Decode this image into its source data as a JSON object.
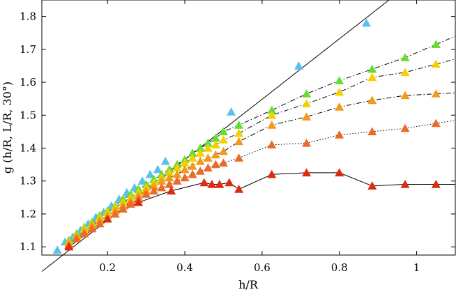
{
  "chart_data": {
    "type": "scatter",
    "title": "",
    "xlabel": "h/R",
    "ylabel": "g (h/R, L/R, 30°)",
    "xlim": [
      0.03,
      1.1
    ],
    "ylim": [
      1.075,
      1.85
    ],
    "xticks": [
      0.2,
      0.4,
      0.6,
      0.8,
      1.0
    ],
    "xtick_labels": [
      "0.2",
      "0.4",
      "0.6",
      "0.8",
      "1"
    ],
    "yticks": [
      1.1,
      1.2,
      1.3,
      1.4,
      1.5,
      1.6,
      1.7,
      1.8
    ],
    "ytick_labels": [
      "1.1",
      "1.2",
      "1.3",
      "1.4",
      "1.5",
      "1.6",
      "1.7",
      "1.8"
    ],
    "grid": false,
    "legend": "none",
    "marker": "triangle",
    "reference_line": {
      "style": "solid",
      "points": [
        [
          0.03,
          1.015
        ],
        [
          0.95,
          1.87
        ]
      ]
    },
    "series": [
      {
        "color": "#5bc0eb",
        "line": "none",
        "x": [
          0.07,
          0.09,
          0.11,
          0.13,
          0.15,
          0.17,
          0.19,
          0.21,
          0.23,
          0.25,
          0.27,
          0.29,
          0.31,
          0.33,
          0.35,
          0.52,
          0.695,
          0.87
        ],
        "y": [
          1.09,
          1.115,
          1.13,
          1.15,
          1.17,
          1.19,
          1.205,
          1.225,
          1.245,
          1.265,
          1.28,
          1.3,
          1.32,
          1.335,
          1.36,
          1.51,
          1.65,
          1.78
        ]
      },
      {
        "color": "#66dd33",
        "line": "dashdot",
        "x": [
          0.1,
          0.12,
          0.14,
          0.16,
          0.18,
          0.2,
          0.22,
          0.24,
          0.26,
          0.28,
          0.3,
          0.32,
          0.34,
          0.36,
          0.38,
          0.4,
          0.42,
          0.44,
          0.46,
          0.48,
          0.5,
          0.54,
          0.625,
          0.715,
          0.8,
          0.885,
          0.97,
          1.05
        ],
        "y": [
          1.12,
          1.14,
          1.16,
          1.175,
          1.195,
          1.21,
          1.225,
          1.245,
          1.26,
          1.275,
          1.29,
          1.305,
          1.32,
          1.335,
          1.35,
          1.365,
          1.385,
          1.4,
          1.415,
          1.43,
          1.45,
          1.47,
          1.515,
          1.565,
          1.605,
          1.64,
          1.675,
          1.715
        ]
      },
      {
        "color": "#f5d000",
        "line": "dashdot",
        "x": [
          0.1,
          0.12,
          0.14,
          0.16,
          0.18,
          0.2,
          0.22,
          0.24,
          0.26,
          0.28,
          0.3,
          0.32,
          0.34,
          0.36,
          0.38,
          0.4,
          0.42,
          0.44,
          0.46,
          0.48,
          0.5,
          0.54,
          0.625,
          0.715,
          0.8,
          0.885,
          0.97,
          1.05
        ],
        "y": [
          1.115,
          1.135,
          1.155,
          1.17,
          1.19,
          1.205,
          1.22,
          1.235,
          1.25,
          1.265,
          1.28,
          1.295,
          1.31,
          1.325,
          1.34,
          1.355,
          1.37,
          1.385,
          1.4,
          1.41,
          1.425,
          1.445,
          1.5,
          1.535,
          1.57,
          1.615,
          1.63,
          1.655
        ]
      },
      {
        "color": "#f39a1c",
        "line": "dashdot",
        "x": [
          0.1,
          0.12,
          0.14,
          0.16,
          0.18,
          0.2,
          0.22,
          0.24,
          0.26,
          0.28,
          0.3,
          0.32,
          0.34,
          0.36,
          0.38,
          0.4,
          0.42,
          0.44,
          0.46,
          0.48,
          0.5,
          0.54,
          0.625,
          0.715,
          0.8,
          0.885,
          0.97,
          1.05
        ],
        "y": [
          1.11,
          1.13,
          1.145,
          1.165,
          1.18,
          1.195,
          1.21,
          1.225,
          1.24,
          1.255,
          1.27,
          1.285,
          1.3,
          1.31,
          1.32,
          1.335,
          1.345,
          1.36,
          1.37,
          1.38,
          1.39,
          1.42,
          1.47,
          1.495,
          1.525,
          1.545,
          1.56,
          1.565
        ]
      },
      {
        "color": "#ec6a2a",
        "line": "dotted",
        "x": [
          0.1,
          0.12,
          0.14,
          0.16,
          0.18,
          0.2,
          0.22,
          0.24,
          0.26,
          0.28,
          0.3,
          0.32,
          0.34,
          0.36,
          0.38,
          0.4,
          0.42,
          0.44,
          0.46,
          0.48,
          0.5,
          0.54,
          0.625,
          0.715,
          0.8,
          0.885,
          0.97,
          1.05
        ],
        "y": [
          1.105,
          1.125,
          1.14,
          1.155,
          1.17,
          1.185,
          1.2,
          1.215,
          1.23,
          1.245,
          1.26,
          1.27,
          1.28,
          1.29,
          1.3,
          1.31,
          1.32,
          1.33,
          1.34,
          1.35,
          1.355,
          1.37,
          1.41,
          1.415,
          1.44,
          1.45,
          1.46,
          1.475
        ]
      },
      {
        "color": "#de2a10",
        "line": "solid",
        "x": [
          0.1,
          0.2,
          0.28,
          0.365,
          0.45,
          0.47,
          0.49,
          0.515,
          0.54,
          0.625,
          0.715,
          0.8,
          0.885,
          0.97,
          1.05
        ],
        "y": [
          1.1,
          1.185,
          1.235,
          1.27,
          1.295,
          1.29,
          1.29,
          1.295,
          1.275,
          1.32,
          1.325,
          1.325,
          1.285,
          1.29,
          1.29
        ]
      }
    ]
  }
}
